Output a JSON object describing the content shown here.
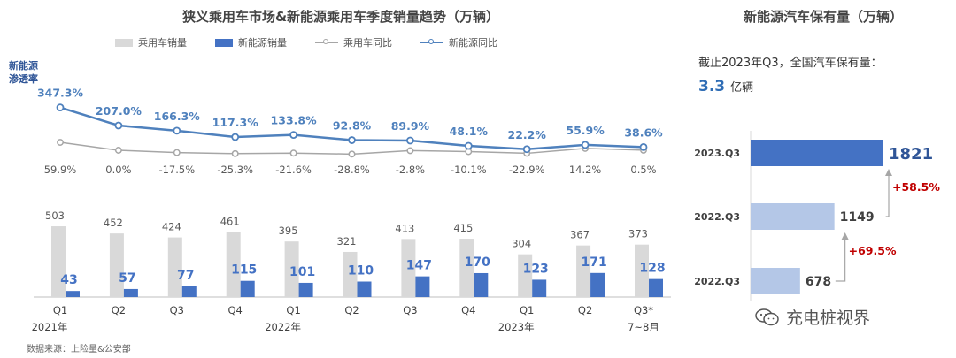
{
  "left_title": "狭义乘用车市场&新能源乘用车季度销量趋势（万辆）",
  "right_title": "新能源汽车保有量（万辆）",
  "legend": [
    {
      "label": "乘用车销量",
      "kind": "bar",
      "color": "#d9d9d9"
    },
    {
      "label": "新能源销量",
      "kind": "bar",
      "color": "#4472c4"
    },
    {
      "label": "乘用车同比",
      "kind": "line",
      "color": "#a6a6a6"
    },
    {
      "label": "新能源同比",
      "kind": "line",
      "color": "#4f81bd"
    }
  ],
  "penetration_label": "新能源 渗透率",
  "source": "数据来源：上险量&公安部",
  "stock_note": "截止2023年Q3，全国汽车保有量：",
  "stock_value": "3.3",
  "stock_unit": "亿辆",
  "watermark_text": "充电桩视界",
  "chart_data": [
    {
      "type": "bar",
      "categories": [
        "Q1",
        "Q2",
        "Q3",
        "Q4",
        "Q1",
        "Q2",
        "Q3",
        "Q4",
        "Q1",
        "Q2",
        "Q3*"
      ],
      "year_labels": [
        "2021年",
        "2022年",
        "2023年"
      ],
      "period_note": "7~8月",
      "series": [
        {
          "name": "乘用车销量",
          "type": "bar",
          "color": "#d9d9d9",
          "values": [
            503,
            452,
            424,
            461,
            395,
            321,
            413,
            415,
            304,
            367,
            373
          ]
        },
        {
          "name": "新能源销量",
          "type": "bar",
          "color": "#4472c4",
          "values": [
            43,
            57,
            77,
            115,
            101,
            110,
            147,
            170,
            123,
            171,
            128
          ]
        },
        {
          "name": "乘用车同比",
          "type": "line",
          "color": "#a6a6a6",
          "unit": "%",
          "values": [
            59.9,
            0.0,
            -17.5,
            -25.3,
            -21.6,
            -28.8,
            -2.8,
            -10.1,
            -22.9,
            14.2,
            0.5
          ]
        },
        {
          "name": "新能源同比",
          "type": "line",
          "color": "#4f81bd",
          "unit": "%",
          "values": [
            347.3,
            207.0,
            166.3,
            117.3,
            133.8,
            92.8,
            89.9,
            48.1,
            22.2,
            55.9,
            38.6
          ]
        }
      ]
    },
    {
      "type": "bar",
      "orientation": "horizontal",
      "categories": [
        "2023.Q3",
        "2022.Q3",
        "2022.Q3"
      ],
      "values": [
        1821,
        1149,
        678
      ],
      "colors": [
        "#4472c4",
        "#b4c7e7",
        "#b4c7e7"
      ],
      "growth": [
        "+58.5%",
        "+69.5%"
      ],
      "growth_color": "#c00000"
    }
  ]
}
